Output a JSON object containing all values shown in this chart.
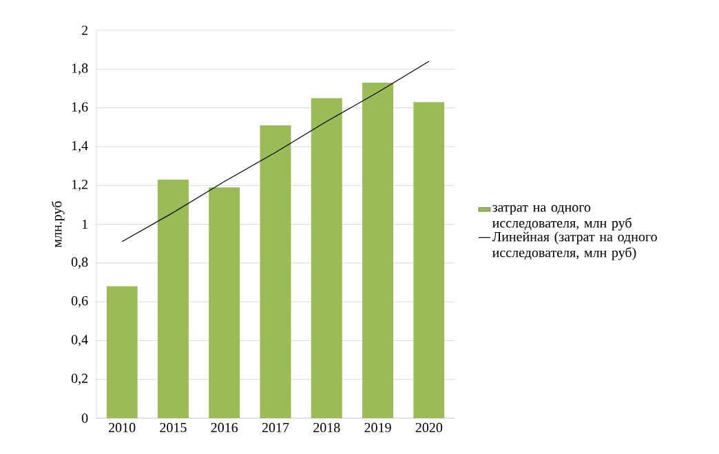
{
  "chart_data": {
    "type": "bar",
    "ylabel": "млн.руб",
    "categories": [
      "2010",
      "2015",
      "2016",
      "2017",
      "2018",
      "2019",
      "2020"
    ],
    "series": [
      {
        "name": "затрат на одного исследователя, млн руб",
        "color": "#9bbb59",
        "values": [
          0.68,
          1.23,
          1.19,
          1.51,
          1.65,
          1.73,
          1.63
        ]
      },
      {
        "name": "Линейная (затрат на одного исследователя, млн руб)",
        "type": "line",
        "color": "#000000",
        "values": [
          0.91,
          1.06,
          1.22,
          1.37,
          1.53,
          1.68,
          1.84
        ]
      }
    ],
    "ylim": [
      0,
      2
    ],
    "yticks": [
      0,
      {
        "value": 0.2,
        "label": "0,2"
      },
      {
        "value": 0.4,
        "label": "0,4"
      },
      {
        "value": 0.6,
        "label": "0,6"
      },
      {
        "value": 0.8,
        "label": "0,8"
      },
      1,
      {
        "value": 1.2,
        "label": "1,2"
      },
      {
        "value": 1.4,
        "label": "1,4"
      },
      {
        "value": 1.6,
        "label": "1,6"
      },
      {
        "value": 1.8,
        "label": "1,8"
      },
      2
    ],
    "grid": "y",
    "legend": "right"
  }
}
